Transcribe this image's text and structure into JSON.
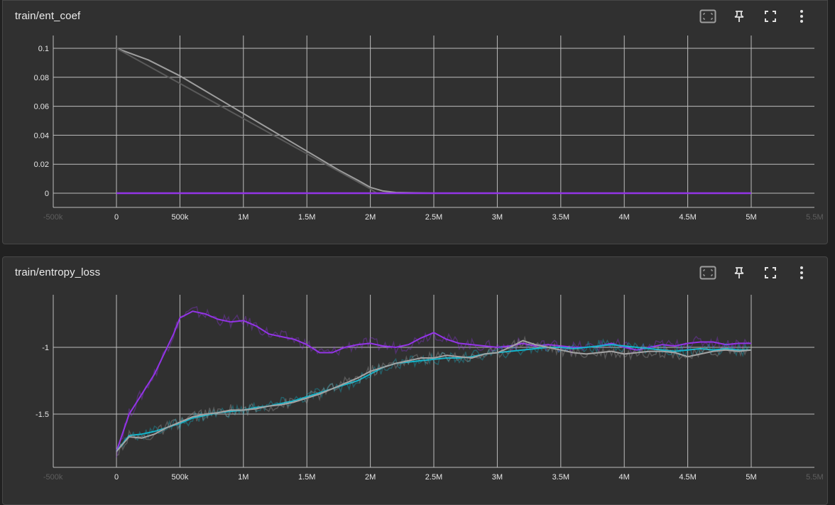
{
  "colors": {
    "background": "#212121",
    "card": "#303030",
    "grid": "#bdbdbd",
    "purple": "#9334e6",
    "cyan": "#12b5cb",
    "gray": "#a3a3a3"
  },
  "toolbar_icons": [
    "fit-domain-icon",
    "pin-icon",
    "fullscreen-icon",
    "more-vert-icon"
  ],
  "chart_data": [
    {
      "type": "line",
      "title": "train/ent_coef",
      "xlabel": "",
      "ylabel": "",
      "x_ticks": [
        "-500k",
        "0",
        "500k",
        "1M",
        "1.5M",
        "2M",
        "2.5M",
        "3M",
        "3.5M",
        "4M",
        "4.5M",
        "5M",
        "5.5M"
      ],
      "x_tick_labels_shown": [
        "-500k",
        "0",
        "500k",
        "1M",
        "1.5M",
        "2M",
        "2.5M",
        "3M",
        "3.5M",
        "4M",
        "4.5M",
        "5M",
        "5.5M"
      ],
      "y_ticks": [
        "0",
        "0.02",
        "0.04",
        "0.06",
        "0.08",
        "0.1"
      ],
      "xlim": [
        -500000,
        5500000
      ],
      "ylim": [
        -0.01,
        0.1
      ],
      "grid": true,
      "series": [
        {
          "color": "#9e9e9e",
          "x": [
            0,
            250000,
            500000,
            750000,
            1000000,
            1250000,
            1500000,
            1750000,
            1900000,
            2000000,
            2100000,
            2200000,
            2500000,
            5000000
          ],
          "y": [
            0.1,
            0.092,
            0.081,
            0.068,
            0.055,
            0.042,
            0.029,
            0.016,
            0.009,
            0.004,
            0.0015,
            0.0005,
            0,
            0
          ]
        },
        {
          "color": "#5a5a5a",
          "x": [
            0,
            2000000,
            2050000,
            5000000
          ],
          "y": [
            0.1,
            0.003,
            0,
            0
          ]
        },
        {
          "color": "#9334e6",
          "x": [
            0,
            5000000
          ],
          "y": [
            0,
            0
          ]
        }
      ]
    },
    {
      "type": "line",
      "title": "train/entropy_loss",
      "xlabel": "",
      "ylabel": "",
      "x_ticks": [
        "-500k",
        "0",
        "500k",
        "1M",
        "1.5M",
        "2M",
        "2.5M",
        "3M",
        "3.5M",
        "4M",
        "4.5M",
        "5M",
        "5.5M"
      ],
      "y_ticks": [
        "-1.5",
        "-1"
      ],
      "xlim": [
        -500000,
        5500000
      ],
      "ylim": [
        -1.9,
        -0.6
      ],
      "grid": true,
      "series": [
        {
          "color": "#9334e6",
          "x": [
            0,
            100000,
            200000,
            300000,
            400000,
            450000,
            500000,
            600000,
            700000,
            800000,
            900000,
            1000000,
            1100000,
            1200000,
            1300000,
            1400000,
            1500000,
            1600000,
            1700000,
            1800000,
            1900000,
            2000000,
            2100000,
            2200000,
            2300000,
            2400000,
            2500000,
            2600000,
            2700000,
            2800000,
            2900000,
            3000000,
            3100000,
            3200000,
            3300000,
            3400000,
            3500000,
            3600000,
            3700000,
            3800000,
            3900000,
            4000000,
            4100000,
            4200000,
            4300000,
            4400000,
            4500000,
            4600000,
            4700000,
            4800000,
            4900000,
            5000000
          ],
          "y": [
            -1.78,
            -1.5,
            -1.35,
            -1.2,
            -1.0,
            -0.9,
            -0.78,
            -0.73,
            -0.75,
            -0.79,
            -0.81,
            -0.8,
            -0.84,
            -0.9,
            -0.92,
            -0.94,
            -0.98,
            -1.04,
            -1.04,
            -1.0,
            -0.98,
            -0.97,
            -0.99,
            -1.0,
            -0.98,
            -0.93,
            -0.89,
            -0.94,
            -0.97,
            -0.98,
            -0.99,
            -1.0,
            -0.99,
            -0.97,
            -0.99,
            -0.98,
            -0.99,
            -1.0,
            -1.0,
            -0.99,
            -0.97,
            -1.0,
            -1.02,
            -1.0,
            -0.98,
            -0.99,
            -0.97,
            -0.96,
            -0.96,
            -0.98,
            -0.97,
            -0.97
          ]
        },
        {
          "color": "#12b5cb",
          "x": [
            0,
            100000,
            200000,
            300000,
            400000,
            500000,
            600000,
            700000,
            800000,
            900000,
            1000000,
            1100000,
            1200000,
            1300000,
            1400000,
            1500000,
            1600000,
            1700000,
            1800000,
            1900000,
            2000000,
            2100000,
            2200000,
            2300000,
            2400000,
            2500000,
            2600000,
            2700000,
            2800000,
            2900000,
            3000000,
            3100000,
            3200000,
            3300000,
            3400000,
            3500000,
            3600000,
            3700000,
            3800000,
            3900000,
            4000000,
            4100000,
            4200000,
            4300000,
            4400000,
            4500000,
            4600000,
            4700000,
            4800000,
            4900000,
            5000000
          ],
          "y": [
            -1.78,
            -1.66,
            -1.65,
            -1.63,
            -1.6,
            -1.57,
            -1.53,
            -1.51,
            -1.49,
            -1.48,
            -1.47,
            -1.45,
            -1.44,
            -1.42,
            -1.4,
            -1.37,
            -1.34,
            -1.31,
            -1.28,
            -1.25,
            -1.2,
            -1.15,
            -1.12,
            -1.11,
            -1.1,
            -1.09,
            -1.08,
            -1.08,
            -1.07,
            -1.05,
            -1.04,
            -1.03,
            -1.02,
            -1.01,
            -1.0,
            -1.0,
            -1.01,
            -1.0,
            -0.99,
            -0.98,
            -0.99,
            -1.0,
            -1.01,
            -1.02,
            -1.03,
            -1.02,
            -1.01,
            -1.02,
            -1.01,
            -1.02,
            -1.02
          ]
        },
        {
          "color": "#a3a3a3",
          "x": [
            0,
            100000,
            200000,
            300000,
            400000,
            500000,
            600000,
            700000,
            800000,
            900000,
            1000000,
            1100000,
            1200000,
            1300000,
            1400000,
            1500000,
            1600000,
            1700000,
            1800000,
            1900000,
            2000000,
            2100000,
            2200000,
            2300000,
            2400000,
            2500000,
            2600000,
            2700000,
            2800000,
            2900000,
            3000000,
            3100000,
            3200000,
            3300000,
            3400000,
            3500000,
            3600000,
            3700000,
            3800000,
            3900000,
            4000000,
            4100000,
            4200000,
            4300000,
            4400000,
            4500000,
            4600000,
            4700000,
            4800000,
            4900000,
            5000000
          ],
          "y": [
            -1.78,
            -1.67,
            -1.68,
            -1.65,
            -1.6,
            -1.56,
            -1.52,
            -1.5,
            -1.49,
            -1.47,
            -1.47,
            -1.46,
            -1.44,
            -1.43,
            -1.41,
            -1.38,
            -1.35,
            -1.31,
            -1.27,
            -1.23,
            -1.18,
            -1.15,
            -1.12,
            -1.1,
            -1.08,
            -1.08,
            -1.06,
            -1.07,
            -1.08,
            -1.05,
            -1.04,
            -1.0,
            -0.95,
            -0.98,
            -1.0,
            -1.02,
            -1.04,
            -1.05,
            -1.04,
            -1.03,
            -1.05,
            -1.04,
            -1.03,
            -1.03,
            -1.04,
            -1.07,
            -1.05,
            -1.03,
            -1.02,
            -1.03,
            -1.02
          ]
        }
      ]
    }
  ]
}
